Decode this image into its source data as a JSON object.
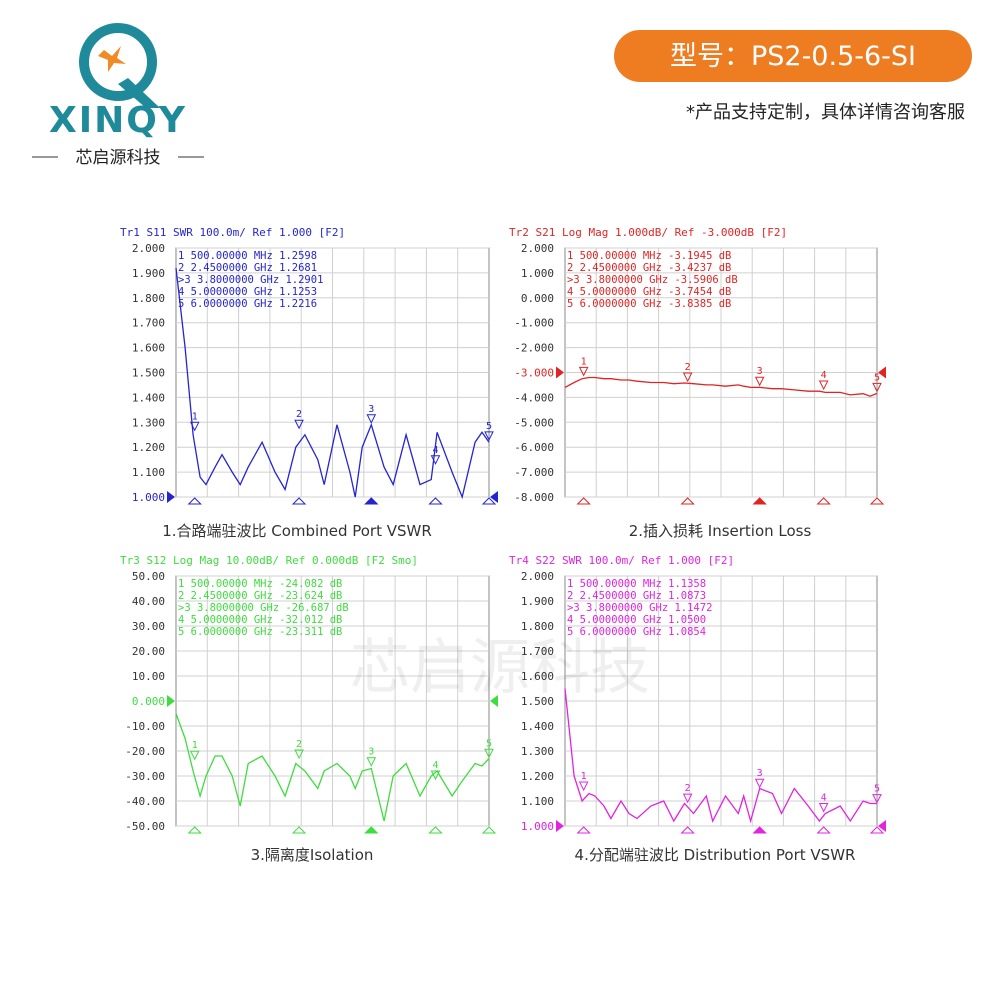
{
  "header": {
    "brand": "XINQY",
    "brand_cn": "芯启源科技",
    "model": "型号：PS2-0.5-6-SI",
    "note": "*产品支持定制，具体详情咨询客服"
  },
  "watermark": "芯启源科技",
  "chart_data": [
    {
      "type": "line",
      "title": "Tr1 S11 SWR 100.0m/ Ref 1.000 [F2]",
      "caption": "1.合路端驻波比 Combined Port VSWR",
      "reference": 1,
      "grid": true,
      "xlim": [
        0.15,
        6
      ],
      "ylim": [
        1,
        2
      ],
      "yticks": [
        {
          "value": 2,
          "label": "2.000"
        },
        {
          "value": 1.9,
          "label": "1.900"
        },
        {
          "value": 1.8,
          "label": "1.800"
        },
        {
          "value": 1.7,
          "label": "1.700"
        },
        {
          "value": 1.6,
          "label": "1.600"
        },
        {
          "value": 1.5,
          "label": "1.500"
        },
        {
          "value": 1.4,
          "label": "1.400"
        },
        {
          "value": 1.3,
          "label": "1.300"
        },
        {
          "value": 1.2,
          "label": "1.200"
        },
        {
          "value": 1.1,
          "label": "1.100"
        },
        {
          "value": 1,
          "label": "1.000"
        }
      ],
      "x": [
        0.15,
        0.32,
        0.47,
        0.6,
        0.71,
        0.88,
        1.01,
        1.2,
        1.35,
        1.5,
        1.76,
        2.0,
        2.19,
        2.39,
        2.56,
        2.8,
        2.92,
        3.16,
        3.4,
        3.5,
        3.63,
        3.8,
        4.04,
        4.21,
        4.45,
        4.71,
        4.92,
        5.03,
        5.31,
        5.5,
        5.74,
        5.87,
        6.0
      ],
      "series": [
        {
          "color": "#2525d0",
          "values": [
            1.92,
            1.6,
            1.25,
            1.08,
            1.05,
            1.12,
            1.17,
            1.1,
            1.05,
            1.12,
            1.22,
            1.1,
            1.03,
            1.2,
            1.25,
            1.15,
            1.05,
            1.29,
            1.1,
            1.0,
            1.2,
            1.29,
            1.12,
            1.05,
            1.25,
            1.05,
            1.07,
            1.26,
            1.1,
            1.0,
            1.22,
            1.26,
            1.22
          ]
        }
      ],
      "marker_rows": [
        "  1   500.00000 MHz   1.2598",
        "  2   2.4500000 GHz   1.2681",
        ">3   3.8000000 GHz   1.2901",
        "  4   5.0000000 GHz   1.1253",
        "  5   6.0000000 GHz   1.2216"
      ],
      "markers": [
        {
          "id": "1",
          "x": 0.5,
          "value": 1.2598
        },
        {
          "id": "2",
          "x": 2.45,
          "value": 1.2681
        },
        {
          "id": "3",
          "x": 3.8,
          "value": 1.2901
        },
        {
          "id": "4",
          "x": 5.0,
          "value": 1.1253
        },
        {
          "id": "5",
          "x": 6.0,
          "value": 1.2216
        }
      ]
    },
    {
      "type": "line",
      "title": "Tr2 S21 Log Mag 1.000dB/ Ref -3.000dB [F2]",
      "caption": "2.插入损耗 Insertion Loss",
      "reference": -3,
      "grid": true,
      "xlim": [
        0.15,
        6
      ],
      "ylim": [
        -8,
        2
      ],
      "yticks": [
        {
          "value": 2,
          "label": "2.000"
        },
        {
          "value": 1,
          "label": "1.000"
        },
        {
          "value": 0,
          "label": "0.000"
        },
        {
          "value": -1,
          "label": "-1.000"
        },
        {
          "value": -2,
          "label": "-2.000"
        },
        {
          "value": -3,
          "label": "-3.000"
        },
        {
          "value": -4,
          "label": "-4.000"
        },
        {
          "value": -5,
          "label": "-5.000"
        },
        {
          "value": -6,
          "label": "-6.000"
        },
        {
          "value": -7,
          "label": "-7.000"
        },
        {
          "value": -8,
          "label": "-8.000"
        }
      ],
      "x": [
        0.15,
        0.32,
        0.47,
        0.6,
        0.71,
        0.88,
        1.01,
        1.2,
        1.35,
        1.5,
        1.76,
        2.0,
        2.19,
        2.39,
        2.56,
        2.8,
        2.92,
        3.16,
        3.4,
        3.5,
        3.63,
        3.8,
        4.04,
        4.21,
        4.45,
        4.71,
        4.92,
        5.03,
        5.31,
        5.5,
        5.74,
        5.87,
        6.0
      ],
      "series": [
        {
          "color": "#e02424",
          "values": [
            -3.6,
            -3.4,
            -3.25,
            -3.2,
            -3.2,
            -3.25,
            -3.25,
            -3.3,
            -3.3,
            -3.35,
            -3.4,
            -3.4,
            -3.45,
            -3.42,
            -3.45,
            -3.5,
            -3.5,
            -3.55,
            -3.5,
            -3.55,
            -3.6,
            -3.6,
            -3.65,
            -3.65,
            -3.7,
            -3.75,
            -3.75,
            -3.8,
            -3.8,
            -3.9,
            -3.85,
            -3.95,
            -3.84
          ]
        }
      ],
      "marker_rows": [
        "  1   500.00000 MHz  -3.1945  dB",
        "  2   2.4500000 GHz  -3.4237  dB",
        ">3   3.8000000 GHz  -3.5906  dB",
        "  4   5.0000000 GHz  -3.7454  dB",
        "  5   6.0000000 GHz  -3.8385  dB"
      ],
      "markers": [
        {
          "id": "1",
          "x": 0.5,
          "value": -3.1945
        },
        {
          "id": "2",
          "x": 2.45,
          "value": -3.4237
        },
        {
          "id": "3",
          "x": 3.8,
          "value": -3.5906
        },
        {
          "id": "4",
          "x": 5.0,
          "value": -3.7454
        },
        {
          "id": "5",
          "x": 6.0,
          "value": -3.8385
        }
      ]
    },
    {
      "type": "line",
      "title": "Tr3 S12 Log Mag 10.00dB/ Ref 0.000dB [F2 Smo]",
      "caption": "3.隔离度Isolation",
      "reference": 0,
      "grid": true,
      "xlim": [
        0.15,
        6
      ],
      "ylim": [
        -50,
        50
      ],
      "yticks": [
        {
          "value": 50,
          "label": "50.00"
        },
        {
          "value": 40,
          "label": "40.00"
        },
        {
          "value": 30,
          "label": "30.00"
        },
        {
          "value": 20,
          "label": "20.00"
        },
        {
          "value": 10,
          "label": "10.00"
        },
        {
          "value": 0,
          "label": "0.000"
        },
        {
          "value": -10,
          "label": "-10.00"
        },
        {
          "value": -20,
          "label": "-20.00"
        },
        {
          "value": -30,
          "label": "-30.00"
        },
        {
          "value": -40,
          "label": "-40.00"
        },
        {
          "value": -50,
          "label": "-50.00"
        }
      ],
      "x": [
        0.15,
        0.32,
        0.47,
        0.6,
        0.71,
        0.88,
        1.01,
        1.2,
        1.35,
        1.5,
        1.76,
        2.0,
        2.19,
        2.39,
        2.56,
        2.8,
        2.92,
        3.16,
        3.4,
        3.5,
        3.63,
        3.8,
        4.04,
        4.21,
        4.45,
        4.71,
        4.92,
        5.03,
        5.31,
        5.5,
        5.74,
        5.87,
        6.0
      ],
      "series": [
        {
          "color": "#3fdc3f",
          "values": [
            -5,
            -15,
            -28,
            -38,
            -30,
            -22,
            -22,
            -30,
            -42,
            -25,
            -22,
            -30,
            -38,
            -25,
            -28,
            -35,
            -28,
            -25,
            -30,
            -35,
            -28,
            -27,
            -48,
            -30,
            -25,
            -38,
            -30,
            -28,
            -38,
            -32,
            -25,
            -26,
            -23
          ]
        }
      ],
      "marker_rows": [
        "  1   500.00000 MHz  -24.082  dB",
        "  2   2.4500000 GHz  -23.624  dB",
        ">3   3.8000000 GHz  -26.687  dB",
        "  4   5.0000000 GHz  -32.012  dB",
        "  5   6.0000000 GHz  -23.311  dB"
      ],
      "markers": [
        {
          "id": "1",
          "x": 0.5,
          "value": -24.082
        },
        {
          "id": "2",
          "x": 2.45,
          "value": -23.624
        },
        {
          "id": "3",
          "x": 3.8,
          "value": -26.687
        },
        {
          "id": "4",
          "x": 5.0,
          "value": -32.012
        },
        {
          "id": "5",
          "x": 6.0,
          "value": -23.311
        }
      ]
    },
    {
      "type": "line",
      "title": "Tr4 S22 SWR 100.0m/ Ref 1.000 [F2]",
      "caption": "4.分配端驻波比 Distribution  Port VSWR",
      "reference": 1,
      "grid": true,
      "xlim": [
        0.15,
        6
      ],
      "ylim": [
        1,
        2
      ],
      "yticks": [
        {
          "value": 2,
          "label": "2.000"
        },
        {
          "value": 1.9,
          "label": "1.900"
        },
        {
          "value": 1.8,
          "label": "1.800"
        },
        {
          "value": 1.7,
          "label": "1.700"
        },
        {
          "value": 1.6,
          "label": "1.600"
        },
        {
          "value": 1.5,
          "label": "1.500"
        },
        {
          "value": 1.4,
          "label": "1.400"
        },
        {
          "value": 1.3,
          "label": "1.300"
        },
        {
          "value": 1.2,
          "label": "1.200"
        },
        {
          "value": 1.1,
          "label": "1.100"
        },
        {
          "value": 1,
          "label": "1.000"
        }
      ],
      "x": [
        0.15,
        0.32,
        0.47,
        0.6,
        0.71,
        0.88,
        1.01,
        1.2,
        1.35,
        1.5,
        1.76,
        2.0,
        2.19,
        2.39,
        2.56,
        2.8,
        2.92,
        3.16,
        3.4,
        3.5,
        3.63,
        3.8,
        4.04,
        4.21,
        4.45,
        4.71,
        4.92,
        5.03,
        5.31,
        5.5,
        5.74,
        5.87,
        6.0
      ],
      "series": [
        {
          "color": "#e024e0",
          "values": [
            1.55,
            1.2,
            1.1,
            1.13,
            1.12,
            1.08,
            1.03,
            1.1,
            1.05,
            1.03,
            1.08,
            1.1,
            1.02,
            1.09,
            1.05,
            1.12,
            1.02,
            1.12,
            1.05,
            1.12,
            1.02,
            1.15,
            1.13,
            1.05,
            1.15,
            1.08,
            1.02,
            1.05,
            1.08,
            1.02,
            1.1,
            1.09,
            1.09
          ]
        }
      ],
      "marker_rows": [
        "  1   500.00000 MHz   1.1358",
        "  2   2.4500000 GHz   1.0873",
        ">3   3.8000000 GHz   1.1472",
        "  4   5.0000000 GHz   1.0500",
        "  5   6.0000000 GHz   1.0854"
      ],
      "markers": [
        {
          "id": "1",
          "x": 0.5,
          "value": 1.1358
        },
        {
          "id": "2",
          "x": 2.45,
          "value": 1.0873
        },
        {
          "id": "3",
          "x": 3.8,
          "value": 1.1472
        },
        {
          "id": "4",
          "x": 5.0,
          "value": 1.05
        },
        {
          "id": "5",
          "x": 6.0,
          "value": 1.0854
        }
      ]
    }
  ]
}
